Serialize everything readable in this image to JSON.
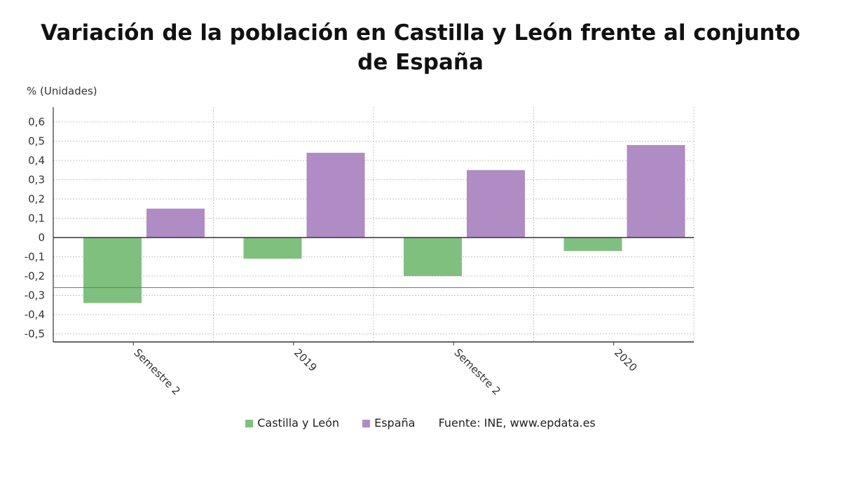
{
  "chart_data": {
    "type": "bar",
    "title": "Variación de la población en Castilla y León frente al conjunto de España",
    "ylabel": "% (Unidades)",
    "categories": [
      "Semestre 2",
      "2019",
      "Semestre 2",
      "2020"
    ],
    "series": [
      {
        "name": "Castilla y León",
        "color": "#80c07e",
        "values": [
          -0.34,
          -0.11,
          -0.2,
          -0.07
        ]
      },
      {
        "name": "España",
        "color": "#af8cc4",
        "values": [
          0.15,
          0.44,
          0.35,
          0.48
        ]
      }
    ],
    "ylim": [
      -0.5,
      0.6
    ],
    "yticks": [
      {
        "v": 0.6,
        "label": "0,6"
      },
      {
        "v": 0.5,
        "label": "0,5"
      },
      {
        "v": 0.4,
        "label": "0,4"
      },
      {
        "v": 0.3,
        "label": "0,3"
      },
      {
        "v": 0.2,
        "label": "0,2"
      },
      {
        "v": 0.1,
        "label": "0,1"
      },
      {
        "v": 0,
        "label": "0"
      },
      {
        "v": -0.1,
        "label": "-0,1"
      },
      {
        "v": -0.2,
        "label": "-0,2"
      },
      {
        "v": -0.3,
        "label": "-0,3"
      },
      {
        "v": -0.4,
        "label": "-0,4"
      },
      {
        "v": -0.5,
        "label": "-0,5"
      }
    ],
    "reference_line": -0.26,
    "grid": true,
    "legend_position": "bottom",
    "source": "Fuente: INE, www.epdata.es"
  }
}
